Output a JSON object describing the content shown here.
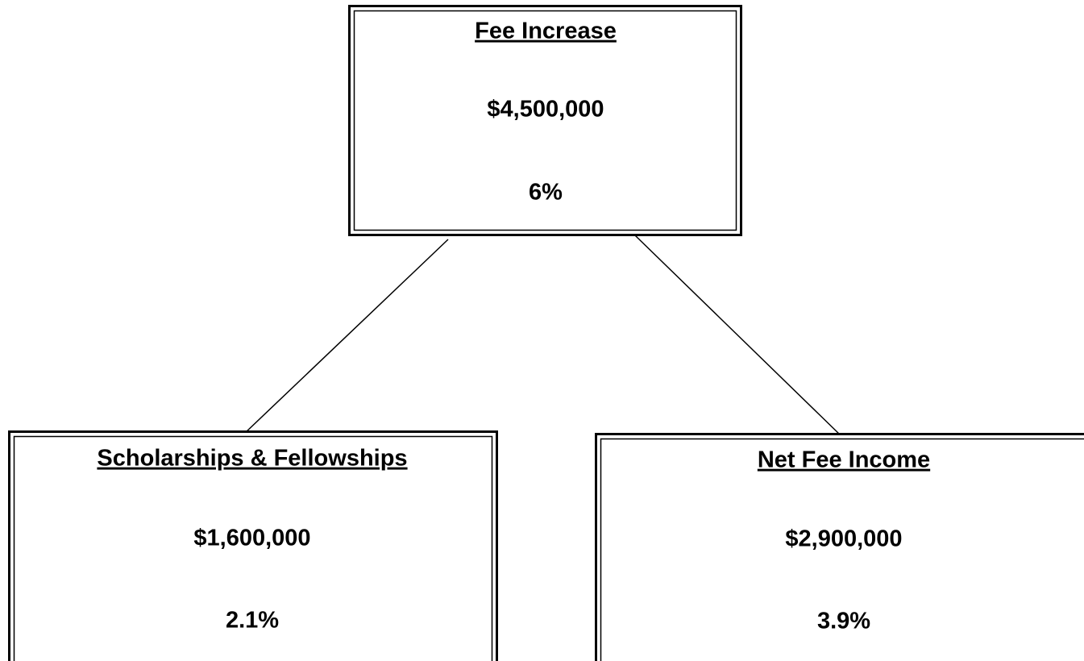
{
  "nodes": [
    {
      "label": "Fee Increase",
      "amount": "$4,500,000",
      "percent": "6%"
    },
    {
      "label": "Scholarships & Fellowships",
      "amount": "$1,600,000",
      "percent": "2.1%"
    },
    {
      "label": "Net Fee Income",
      "amount": "$2,900,000",
      "percent": "3.9%"
    }
  ]
}
